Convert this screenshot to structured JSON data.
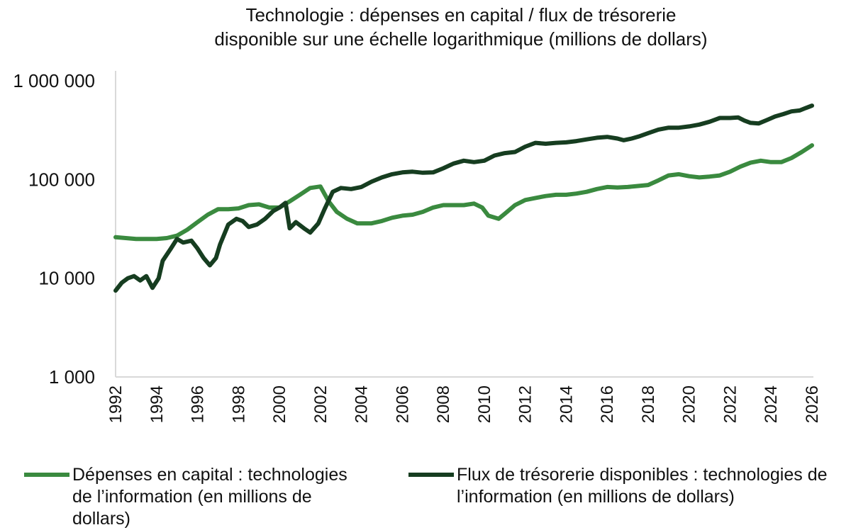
{
  "chart_data": {
    "type": "line",
    "title": "Technologie : dépenses en capital / flux de trésorerie disponible sur une échelle logarithmique (millions de dollars)",
    "title_lines": [
      "Technologie : dépenses en capital / flux de trésorerie",
      "disponible sur une échelle logarithmique (millions de dollars)"
    ],
    "xlabel": "",
    "ylabel": "",
    "y_scale": "log",
    "ylim": [
      1000,
      1000000
    ],
    "xlim": [
      1992,
      2026
    ],
    "y_ticks": [
      {
        "value": 1000,
        "label": "1 000"
      },
      {
        "value": 10000,
        "label": "10 000"
      },
      {
        "value": 100000,
        "label": "100 000"
      },
      {
        "value": 1000000,
        "label": "1 000 000"
      }
    ],
    "x_ticks": [
      {
        "value": 1992,
        "label": "1992"
      },
      {
        "value": 1994,
        "label": "1994"
      },
      {
        "value": 1996,
        "label": "1996"
      },
      {
        "value": 1998,
        "label": "1998"
      },
      {
        "value": 2000,
        "label": "2000"
      },
      {
        "value": 2002,
        "label": "2002"
      },
      {
        "value": 2004,
        "label": "2004"
      },
      {
        "value": 2006,
        "label": "2006"
      },
      {
        "value": 2008,
        "label": "2008"
      },
      {
        "value": 2010,
        "label": "2010"
      },
      {
        "value": 2012,
        "label": "2012"
      },
      {
        "value": 2014,
        "label": "2014"
      },
      {
        "value": 2016,
        "label": "2016"
      },
      {
        "value": 2018,
        "label": "2018"
      },
      {
        "value": 2020,
        "label": "2020"
      },
      {
        "value": 2022,
        "label": "2022"
      },
      {
        "value": 2024,
        "label": "2024"
      },
      {
        "value": 2026,
        "label": "2026"
      }
    ],
    "grid": false,
    "legend_position": "bottom",
    "series": [
      {
        "name": "Dépenses en capital : technologies de l’information (en millions de dollars)",
        "color": "#3a8a3f",
        "points": [
          [
            1992.0,
            26000
          ],
          [
            1992.5,
            25500
          ],
          [
            1993.0,
            25000
          ],
          [
            1993.5,
            25000
          ],
          [
            1994.0,
            25000
          ],
          [
            1994.5,
            25500
          ],
          [
            1995.0,
            27000
          ],
          [
            1995.5,
            31000
          ],
          [
            1996.0,
            37000
          ],
          [
            1996.5,
            44000
          ],
          [
            1997.0,
            50000
          ],
          [
            1997.5,
            50000
          ],
          [
            1998.0,
            51000
          ],
          [
            1998.5,
            55000
          ],
          [
            1999.0,
            56000
          ],
          [
            1999.5,
            52000
          ],
          [
            2000.0,
            52000
          ],
          [
            2000.5,
            60000
          ],
          [
            2001.0,
            70000
          ],
          [
            2001.5,
            82000
          ],
          [
            2002.0,
            85000
          ],
          [
            2002.4,
            60000
          ],
          [
            2002.8,
            47000
          ],
          [
            2003.3,
            40000
          ],
          [
            2003.8,
            36000
          ],
          [
            2004.5,
            36000
          ],
          [
            2005.0,
            38000
          ],
          [
            2005.5,
            41000
          ],
          [
            2006.0,
            43000
          ],
          [
            2006.5,
            44000
          ],
          [
            2007.0,
            47000
          ],
          [
            2007.5,
            52000
          ],
          [
            2008.0,
            55000
          ],
          [
            2008.5,
            55000
          ],
          [
            2009.0,
            55000
          ],
          [
            2009.5,
            57000
          ],
          [
            2009.9,
            52000
          ],
          [
            2010.2,
            43000
          ],
          [
            2010.7,
            40000
          ],
          [
            2011.0,
            45000
          ],
          [
            2011.5,
            55000
          ],
          [
            2012.0,
            62000
          ],
          [
            2012.5,
            65000
          ],
          [
            2013.0,
            68000
          ],
          [
            2013.5,
            70000
          ],
          [
            2014.0,
            70000
          ],
          [
            2014.5,
            72000
          ],
          [
            2015.0,
            75000
          ],
          [
            2015.5,
            80000
          ],
          [
            2016.0,
            84000
          ],
          [
            2016.5,
            83000
          ],
          [
            2017.0,
            84000
          ],
          [
            2017.5,
            86000
          ],
          [
            2018.0,
            88000
          ],
          [
            2018.5,
            98000
          ],
          [
            2019.0,
            110000
          ],
          [
            2019.5,
            113000
          ],
          [
            2020.0,
            108000
          ],
          [
            2020.5,
            105000
          ],
          [
            2021.0,
            107000
          ],
          [
            2021.5,
            110000
          ],
          [
            2022.0,
            120000
          ],
          [
            2022.5,
            135000
          ],
          [
            2023.0,
            148000
          ],
          [
            2023.5,
            155000
          ],
          [
            2024.0,
            150000
          ],
          [
            2024.5,
            150000
          ],
          [
            2025.0,
            165000
          ],
          [
            2025.5,
            190000
          ],
          [
            2026.0,
            222000
          ]
        ]
      },
      {
        "name": "Flux de trésorerie disponibles : technologies de l’information (en millions de dollars)",
        "color": "#163d20",
        "points": [
          [
            1992.0,
            7500
          ],
          [
            1992.3,
            9000
          ],
          [
            1992.6,
            10000
          ],
          [
            1992.9,
            10500
          ],
          [
            1993.2,
            9500
          ],
          [
            1993.5,
            10500
          ],
          [
            1993.8,
            8000
          ],
          [
            1994.1,
            10000
          ],
          [
            1994.3,
            15000
          ],
          [
            1994.7,
            20000
          ],
          [
            1995.0,
            25000
          ],
          [
            1995.3,
            23000
          ],
          [
            1995.7,
            24000
          ],
          [
            1996.0,
            20000
          ],
          [
            1996.3,
            16000
          ],
          [
            1996.6,
            13500
          ],
          [
            1996.9,
            16000
          ],
          [
            1997.1,
            22000
          ],
          [
            1997.5,
            35000
          ],
          [
            1997.9,
            40000
          ],
          [
            1998.2,
            38000
          ],
          [
            1998.5,
            33000
          ],
          [
            1998.9,
            35000
          ],
          [
            1999.3,
            40000
          ],
          [
            1999.7,
            48000
          ],
          [
            2000.0,
            52000
          ],
          [
            2000.3,
            58000
          ],
          [
            2000.5,
            32000
          ],
          [
            2000.8,
            37000
          ],
          [
            2001.2,
            32000
          ],
          [
            2001.5,
            29000
          ],
          [
            2001.9,
            36000
          ],
          [
            2002.2,
            50000
          ],
          [
            2002.6,
            75000
          ],
          [
            2003.0,
            82000
          ],
          [
            2003.5,
            80000
          ],
          [
            2004.0,
            84000
          ],
          [
            2004.5,
            95000
          ],
          [
            2005.0,
            105000
          ],
          [
            2005.5,
            113000
          ],
          [
            2006.0,
            118000
          ],
          [
            2006.5,
            120000
          ],
          [
            2007.0,
            117000
          ],
          [
            2007.5,
            118000
          ],
          [
            2008.0,
            130000
          ],
          [
            2008.5,
            145000
          ],
          [
            2009.0,
            155000
          ],
          [
            2009.5,
            150000
          ],
          [
            2010.0,
            155000
          ],
          [
            2010.5,
            175000
          ],
          [
            2011.0,
            185000
          ],
          [
            2011.5,
            190000
          ],
          [
            2012.0,
            215000
          ],
          [
            2012.5,
            235000
          ],
          [
            2013.0,
            230000
          ],
          [
            2013.5,
            235000
          ],
          [
            2014.0,
            238000
          ],
          [
            2014.5,
            245000
          ],
          [
            2015.0,
            255000
          ],
          [
            2015.5,
            265000
          ],
          [
            2016.0,
            270000
          ],
          [
            2016.5,
            260000
          ],
          [
            2016.8,
            250000
          ],
          [
            2017.2,
            260000
          ],
          [
            2017.6,
            275000
          ],
          [
            2018.0,
            295000
          ],
          [
            2018.5,
            320000
          ],
          [
            2019.0,
            335000
          ],
          [
            2019.5,
            335000
          ],
          [
            2020.0,
            345000
          ],
          [
            2020.5,
            360000
          ],
          [
            2021.0,
            385000
          ],
          [
            2021.5,
            420000
          ],
          [
            2022.0,
            420000
          ],
          [
            2022.4,
            425000
          ],
          [
            2022.7,
            395000
          ],
          [
            2023.0,
            375000
          ],
          [
            2023.4,
            370000
          ],
          [
            2023.8,
            400000
          ],
          [
            2024.2,
            435000
          ],
          [
            2024.6,
            460000
          ],
          [
            2025.0,
            490000
          ],
          [
            2025.4,
            500000
          ],
          [
            2025.7,
            530000
          ],
          [
            2026.0,
            560000
          ]
        ]
      }
    ]
  }
}
